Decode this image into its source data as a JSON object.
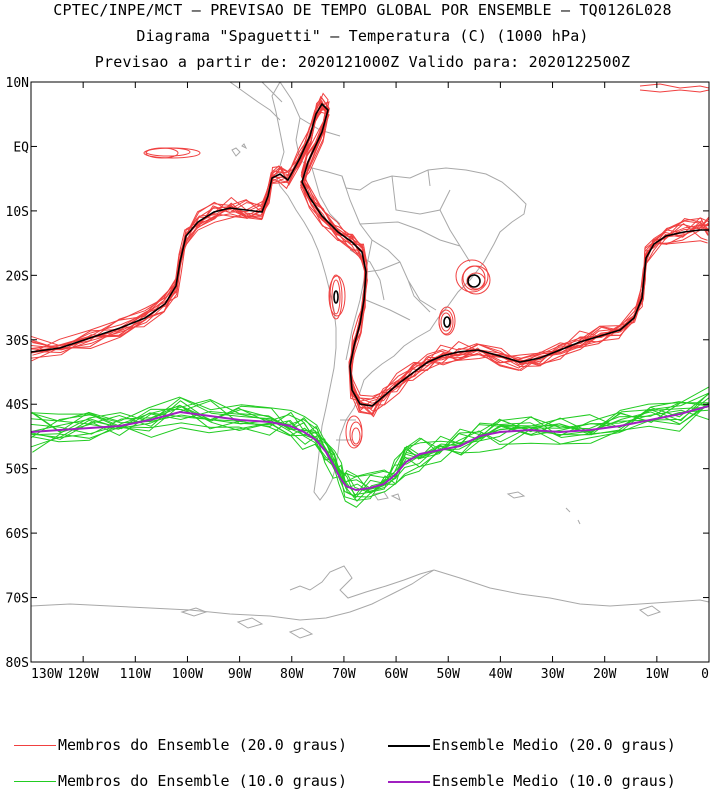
{
  "header": {
    "line1": "CPTEC/INPE/MCT – PREVISAO DE TEMPO GLOBAL POR ENSEMBLE – TQ0126L028",
    "line2": "Diagrama \"Spaguetti\" – Temperatura (C) (1000 hPa)",
    "line3": "Previsao a partir de: 2020121000Z  Valido para: 2020122500Z"
  },
  "map": {
    "lat_labels": [
      "10N",
      "EQ",
      "10S",
      "20S",
      "30S",
      "40S",
      "50S",
      "60S",
      "70S",
      "80S"
    ],
    "lon_labels": [
      "130W",
      "120W",
      "110W",
      "100W",
      "90W",
      "80W",
      "70W",
      "60W",
      "50W",
      "40W",
      "30W",
      "20W",
      "10W",
      "0"
    ],
    "lat_values": [
      10,
      0,
      -10,
      -20,
      -30,
      -40,
      -50,
      -60,
      -70,
      -80
    ],
    "lon_values": [
      -130,
      -120,
      -110,
      -100,
      -90,
      -80,
      -70,
      -60,
      -50,
      -40,
      -30,
      -20,
      -10,
      0
    ],
    "lon_range": [
      -130,
      0
    ],
    "lat_range": [
      -80,
      10
    ],
    "colors": {
      "members_20": "#f04040",
      "mean_20": "#000000",
      "members_10": "#22cc22",
      "mean_10": "#a020c0",
      "coast": "#a8a8a8"
    }
  },
  "legend": {
    "members_20": "Membros do Ensemble (20.0 graus)",
    "mean_20": "Ensemble Medio (20.0 graus)",
    "members_10": "Membros do Ensemble (10.0 graus)",
    "mean_10": "Ensemble Medio (10.0 graus)"
  }
}
